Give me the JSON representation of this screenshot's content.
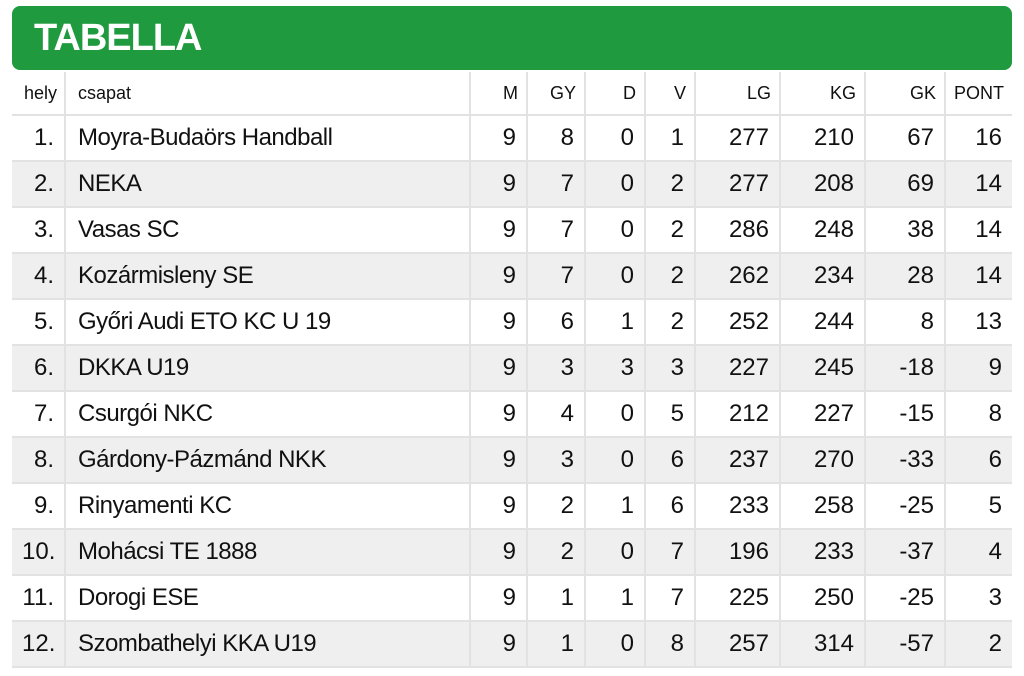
{
  "header": {
    "title": "TABELLA"
  },
  "table": {
    "columns": [
      "hely",
      "csapat",
      "M",
      "GY",
      "D",
      "V",
      "LG",
      "KG",
      "GK",
      "PONT"
    ],
    "rows": [
      [
        "1.",
        "Moyra-Budaörs Handball",
        "9",
        "8",
        "0",
        "1",
        "277",
        "210",
        "67",
        "16"
      ],
      [
        "2.",
        "NEKA",
        "9",
        "7",
        "0",
        "2",
        "277",
        "208",
        "69",
        "14"
      ],
      [
        "3.",
        "Vasas SC",
        "9",
        "7",
        "0",
        "2",
        "286",
        "248",
        "38",
        "14"
      ],
      [
        "4.",
        "Kozármisleny SE",
        "9",
        "7",
        "0",
        "2",
        "262",
        "234",
        "28",
        "14"
      ],
      [
        "5.",
        "Győri Audi ETO KC U 19",
        "9",
        "6",
        "1",
        "2",
        "252",
        "244",
        "8",
        "13"
      ],
      [
        "6.",
        "DKKA U19",
        "9",
        "3",
        "3",
        "3",
        "227",
        "245",
        "-18",
        "9"
      ],
      [
        "7.",
        "Csurgói NKC",
        "9",
        "4",
        "0",
        "5",
        "212",
        "227",
        "-15",
        "8"
      ],
      [
        "8.",
        "Gárdony-Pázmánd NKK",
        "9",
        "3",
        "0",
        "6",
        "237",
        "270",
        "-33",
        "6"
      ],
      [
        "9.",
        "Rinyamenti KC",
        "9",
        "2",
        "1",
        "6",
        "233",
        "258",
        "-25",
        "5"
      ],
      [
        "10.",
        "Mohácsi TE 1888",
        "9",
        "2",
        "0",
        "7",
        "196",
        "233",
        "-37",
        "4"
      ],
      [
        "11.",
        "Dorogi ESE",
        "9",
        "1",
        "1",
        "7",
        "225",
        "250",
        "-25",
        "3"
      ],
      [
        "12.",
        "Szombathelyi KKA U19",
        "9",
        "1",
        "0",
        "8",
        "257",
        "314",
        "-57",
        "2"
      ]
    ]
  }
}
